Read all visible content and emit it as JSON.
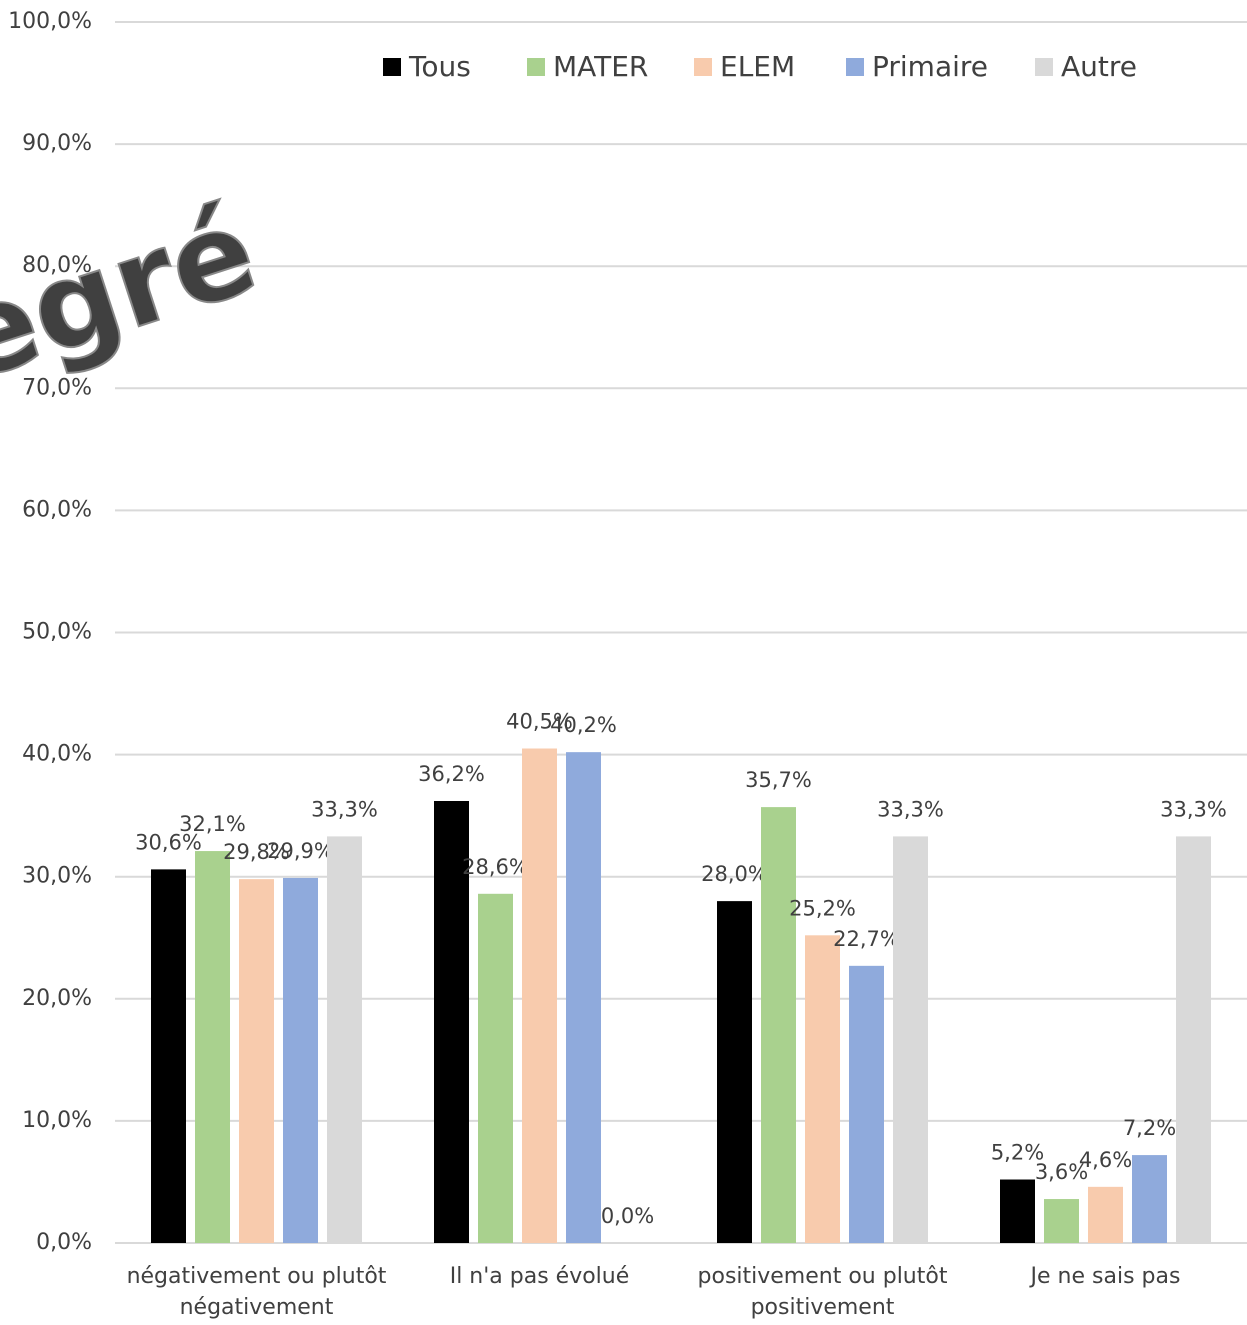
{
  "chart_data": {
    "type": "bar",
    "annotation": "egré",
    "categories": [
      "négativement ou plutôt négativement",
      "Il n'a pas évolué",
      "positivement ou plutôt positivement",
      "Je ne sais pas"
    ],
    "series": [
      {
        "name": "Tous",
        "color": "#000000",
        "values": [
          30.6,
          36.2,
          28.0,
          5.2
        ],
        "value_labels": [
          "30,6%",
          "36,2%",
          "28,0%",
          "5,2%"
        ]
      },
      {
        "name": "MATER",
        "color": "#a9d18e",
        "values": [
          32.1,
          28.6,
          35.7,
          3.6
        ],
        "value_labels": [
          "32,1%",
          "28,6%",
          "35,7%",
          "3,6%"
        ]
      },
      {
        "name": "ELEM",
        "color": "#f8cbad",
        "values": [
          29.8,
          40.5,
          25.2,
          4.6
        ],
        "value_labels": [
          "29,8%",
          "40,5%",
          "25,2%",
          "4,6%"
        ]
      },
      {
        "name": "Primaire",
        "color": "#8faadc",
        "values": [
          29.9,
          40.2,
          22.7,
          7.2
        ],
        "value_labels": [
          "29,9%",
          "40,2%",
          "22,7%",
          "7,2%"
        ]
      },
      {
        "name": "Autre",
        "color": "#d9d9d9",
        "values": [
          33.3,
          0.0,
          33.3,
          33.3
        ],
        "value_labels": [
          "33,3%",
          "0,0%",
          "33,3%",
          "33,3%"
        ]
      }
    ],
    "ylim": [
      0,
      100
    ],
    "yticks": [
      {
        "value": 0,
        "label": "0,0%"
      },
      {
        "value": 10,
        "label": "10,0%"
      },
      {
        "value": 20,
        "label": "20,0%"
      },
      {
        "value": 30,
        "label": "30,0%"
      },
      {
        "value": 40,
        "label": "40,0%"
      },
      {
        "value": 50,
        "label": "50,0%"
      },
      {
        "value": 60,
        "label": "60,0%"
      },
      {
        "value": 70,
        "label": "70,0%"
      },
      {
        "value": 80,
        "label": "80,0%"
      },
      {
        "value": 90,
        "label": "90,0%"
      },
      {
        "value": 100,
        "label": "100,0%"
      }
    ],
    "grid": true,
    "legend": "top"
  }
}
